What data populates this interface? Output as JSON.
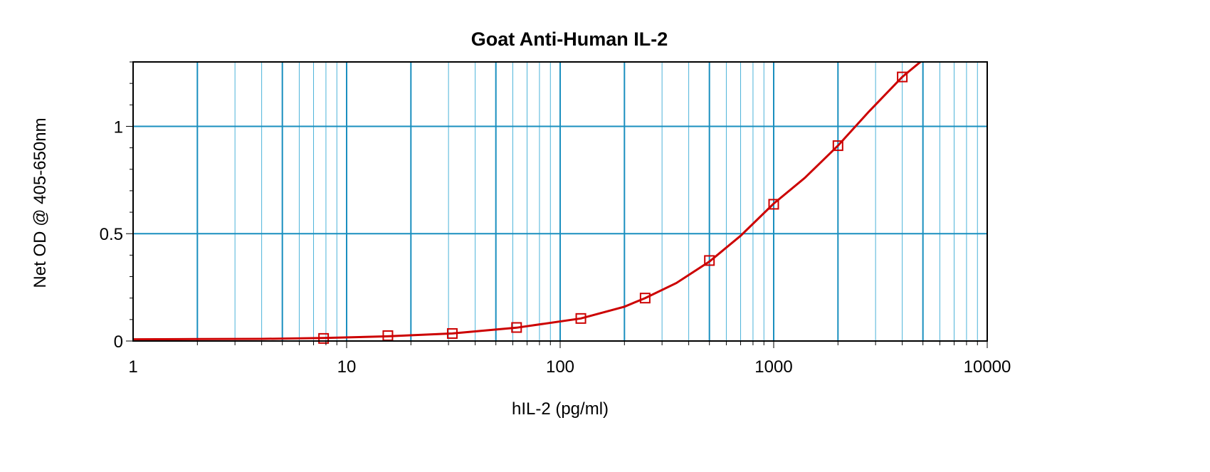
{
  "chart_data": {
    "type": "scatter",
    "title": "Goat Anti-Human IL-2",
    "xlabel": "hIL-2 (pg/ml)",
    "ylabel": "Net OD @ 405-650nm",
    "xscale": "log",
    "xlim": [
      1,
      10000
    ],
    "ylim": [
      0,
      1.3
    ],
    "xticks": [
      "1",
      "10",
      "100",
      "1000",
      "10000"
    ],
    "yticks": [
      "0",
      "0.5",
      "1"
    ],
    "grid": true,
    "legend": "none",
    "series": [
      {
        "marker": "square",
        "color": "#cc0000",
        "x": [
          7.8,
          15.6,
          31.25,
          62.5,
          125,
          250,
          500,
          1000,
          2000,
          4000
        ],
        "y": [
          0.012,
          0.025,
          0.035,
          0.063,
          0.105,
          0.2,
          0.375,
          0.637,
          0.91,
          1.23
        ]
      }
    ],
    "fit_curve": {
      "color": "#cc0000",
      "x": [
        1,
        2,
        4,
        7.8,
        15.6,
        31.25,
        62.5,
        125,
        200,
        250,
        350,
        500,
        700,
        1000,
        1400,
        2000,
        2800,
        4000,
        5000
      ],
      "y": [
        0.008,
        0.009,
        0.01,
        0.014,
        0.022,
        0.035,
        0.062,
        0.105,
        0.16,
        0.2,
        0.27,
        0.37,
        0.49,
        0.64,
        0.76,
        0.91,
        1.07,
        1.23,
        1.31
      ]
    },
    "colors": {
      "grid_major": "#1a8fbf",
      "grid_minor": "#4cb3d9",
      "axis": "#000000"
    }
  }
}
